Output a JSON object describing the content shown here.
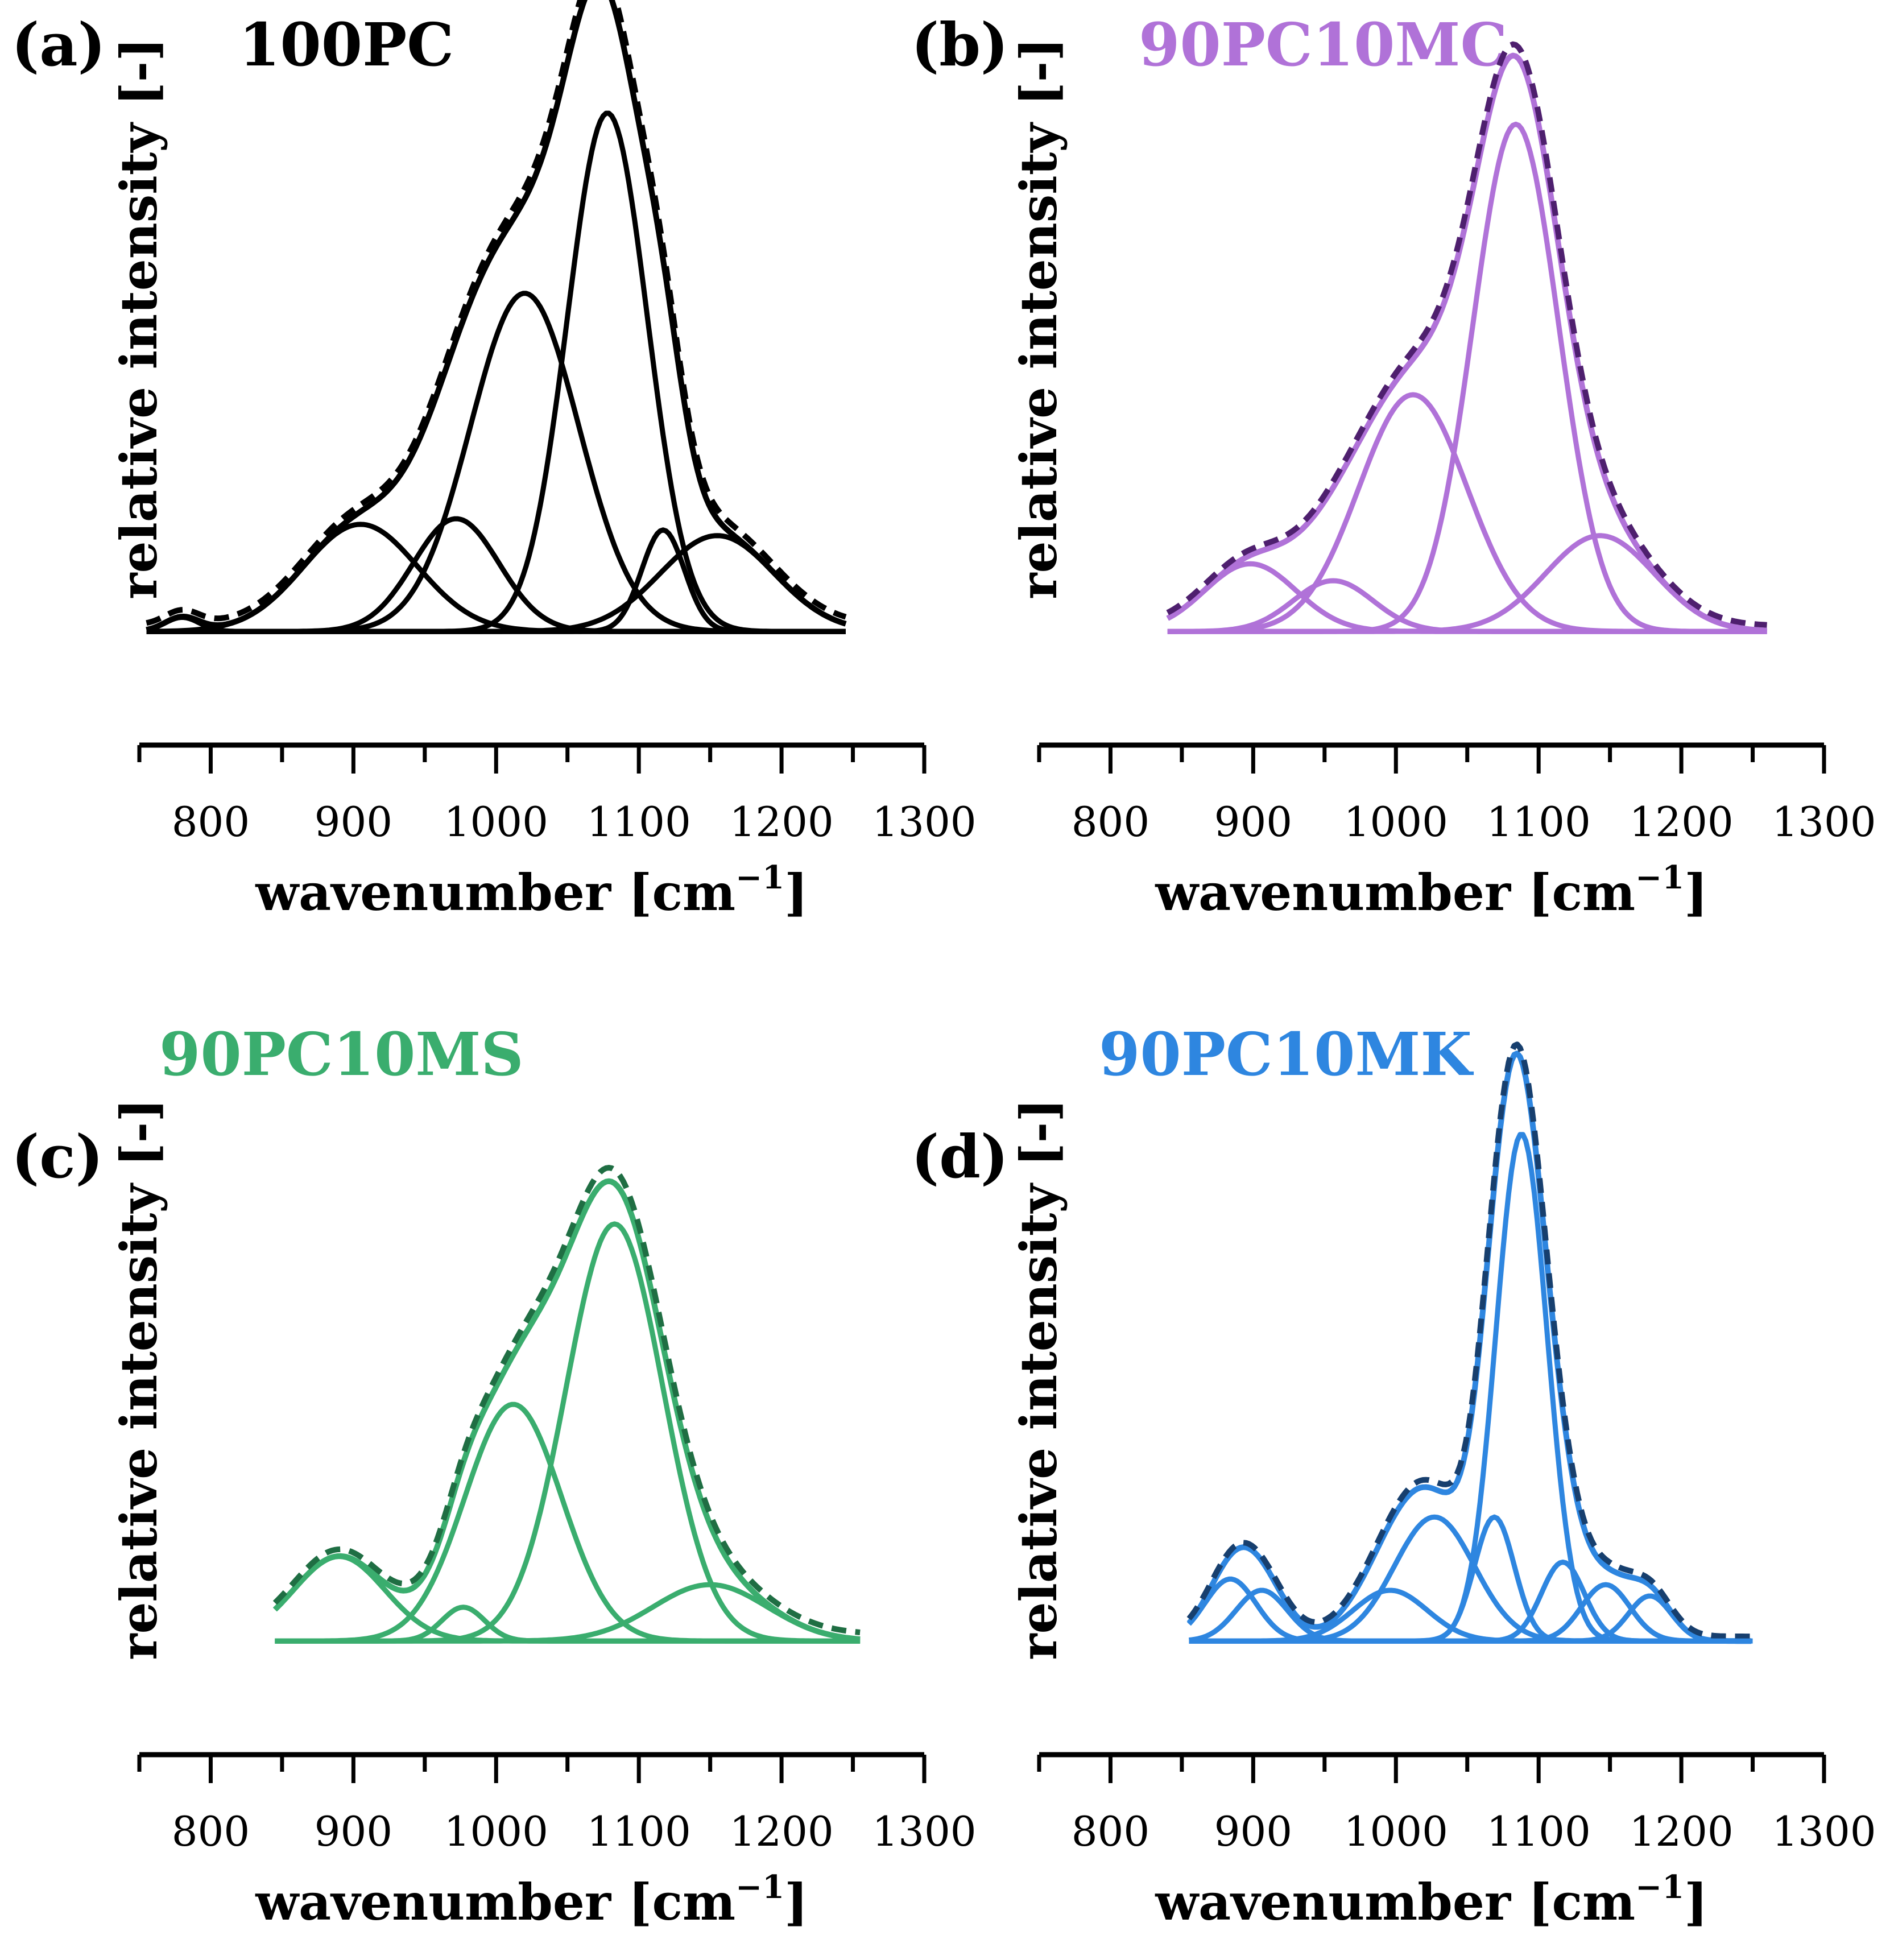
{
  "chart_data": [
    {
      "type": "line",
      "panel_label": "(a)",
      "sample_name": "100PC",
      "color": "#000000",
      "fit_color": "#000000",
      "xlabel": "wavenumber [cm",
      "xlabel_sup": "−1",
      "xlabel_end": "]",
      "ylabel": "relative intensity [-]",
      "xlim": [
        750,
        1300
      ],
      "ylim": [
        0,
        1.1
      ],
      "x_ticks": [
        800,
        900,
        1000,
        1100,
        1200,
        1300
      ],
      "x_range": [
        755,
        1245
      ],
      "baseline": 0.02,
      "components": [
        {
          "center": 780,
          "amplitude": 0.025,
          "width": 12
        },
        {
          "center": 905,
          "amplitude": 0.19,
          "width": 40
        },
        {
          "center": 972,
          "amplitude": 0.2,
          "width": 30
        },
        {
          "center": 1020,
          "amplitude": 0.6,
          "width": 38
        },
        {
          "center": 1078,
          "amplitude": 0.92,
          "width": 28
        },
        {
          "center": 1117,
          "amplitude": 0.18,
          "width": 15
        },
        {
          "center": 1155,
          "amplitude": 0.17,
          "width": 40
        }
      ],
      "measured_offset": 0.012
    },
    {
      "type": "line",
      "panel_label": "(b)",
      "sample_name": "90PC10MC",
      "color": "#b072d8",
      "fit_color": "#4e1f6e",
      "xlabel": "wavenumber [cm",
      "xlabel_sup": "−1",
      "xlabel_end": "]",
      "ylabel": "relative intensity [-]",
      "xlim": [
        750,
        1300
      ],
      "ylim": [
        0,
        1.1
      ],
      "x_ticks": [
        800,
        900,
        1000,
        1100,
        1200,
        1300
      ],
      "x_range": [
        840,
        1260
      ],
      "baseline": 0.02,
      "components": [
        {
          "center": 898,
          "amplitude": 0.12,
          "width": 32
        },
        {
          "center": 956,
          "amplitude": 0.09,
          "width": 28
        },
        {
          "center": 1012,
          "amplitude": 0.42,
          "width": 38
        },
        {
          "center": 1084,
          "amplitude": 0.9,
          "width": 30
        },
        {
          "center": 1143,
          "amplitude": 0.17,
          "width": 38
        }
      ],
      "measured_offset": 0.01
    },
    {
      "type": "line",
      "panel_label": "(c)",
      "sample_name": "90PC10MS",
      "color": "#3aad6e",
      "fit_color": "#1f6e43",
      "xlabel": "wavenumber [cm",
      "xlabel_sup": "−1",
      "xlabel_end": "]",
      "ylabel": "relative intensity [-]",
      "xlim": [
        750,
        1300
      ],
      "ylim": [
        0,
        1.1
      ],
      "x_ticks": [
        800,
        900,
        1000,
        1100,
        1200,
        1300
      ],
      "x_range": [
        845,
        1255
      ],
      "baseline": 0.02,
      "components": [
        {
          "center": 890,
          "amplitude": 0.15,
          "width": 32
        },
        {
          "center": 977,
          "amplitude": 0.06,
          "width": 15
        },
        {
          "center": 1012,
          "amplitude": 0.42,
          "width": 34
        },
        {
          "center": 1083,
          "amplitude": 0.74,
          "width": 34
        },
        {
          "center": 1150,
          "amplitude": 0.1,
          "width": 40
        }
      ],
      "measured_offset": 0.012
    },
    {
      "type": "line",
      "panel_label": "(d)",
      "sample_name": "90PC10MK",
      "color": "#2e86e0",
      "fit_color": "#173f6e",
      "xlabel": "wavenumber [cm",
      "xlabel_sup": "−1",
      "xlabel_end": "]",
      "ylabel": "relative intensity [-]",
      "xlim": [
        750,
        1300
      ],
      "ylim": [
        0,
        1.1
      ],
      "x_ticks": [
        800,
        900,
        1000,
        1100,
        1200,
        1300
      ],
      "x_range": [
        855,
        1250
      ],
      "baseline": 0.02,
      "components": [
        {
          "center": 884,
          "amplitude": 0.11,
          "width": 18
        },
        {
          "center": 906,
          "amplitude": 0.09,
          "width": 18
        },
        {
          "center": 996,
          "amplitude": 0.09,
          "width": 26
        },
        {
          "center": 1027,
          "amplitude": 0.22,
          "width": 28
        },
        {
          "center": 1069,
          "amplitude": 0.22,
          "width": 14
        },
        {
          "center": 1088,
          "amplitude": 0.9,
          "width": 18
        },
        {
          "center": 1117,
          "amplitude": 0.14,
          "width": 15
        },
        {
          "center": 1147,
          "amplitude": 0.1,
          "width": 17
        },
        {
          "center": 1178,
          "amplitude": 0.08,
          "width": 15
        }
      ],
      "measured_offset": 0.008
    }
  ]
}
